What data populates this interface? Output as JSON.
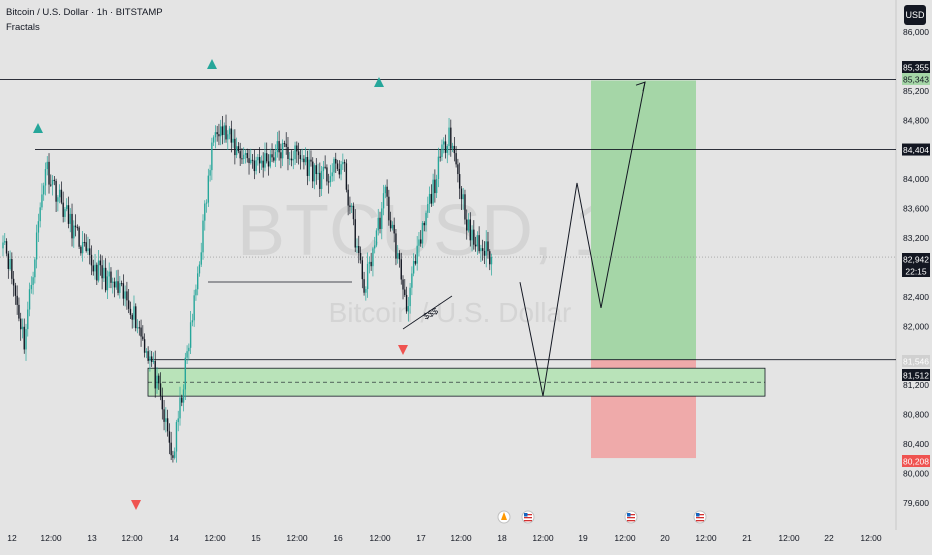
{
  "header": {
    "title": "Bitcoin / U.S. Dollar · 1h · BITSTAMP",
    "indicator": "Fractals",
    "currency_button": "USD"
  },
  "watermark": {
    "symbol": "BTCUSD, 1h",
    "name": "Bitcoin / U.S. Dollar"
  },
  "annotation": {
    "liquidity_label": "$$$"
  },
  "price_scale": {
    "ticks": [
      "86,000",
      "85,200",
      "84,800",
      "84,000",
      "83,600",
      "83,200",
      "82,400",
      "82,000",
      "81,200",
      "80,800",
      "80,400",
      "80,000",
      "79,600"
    ],
    "tags": {
      "resistance_top": "85,355",
      "target": "85,343",
      "resistance_mid": "84,404",
      "current_price": "82,942",
      "countdown": "22:15",
      "entry": "81,546",
      "support": "81,512",
      "stop": "80,208"
    }
  },
  "time_axis": {
    "labels": [
      "12",
      "12:00",
      "13",
      "12:00",
      "14",
      "12:00",
      "15",
      "12:00",
      "16",
      "12:00",
      "17",
      "12:00",
      "18",
      "12:00",
      "19",
      "12:00",
      "20",
      "12:00",
      "21",
      "12:00",
      "22",
      "12:00"
    ]
  },
  "colors": {
    "bull": "#26a69a",
    "bear": "#131722",
    "fractal_up": "#26a69a",
    "fractal_down": "#ef5350",
    "profit_zone": "#a5d6a7",
    "loss_zone": "#efaaaa",
    "demand_zone": "#b9e3b9"
  },
  "chart_data": {
    "type": "candlestick",
    "symbol": "BTCUSD",
    "interval": "1h",
    "exchange": "BITSTAMP",
    "ylim": [
      79400,
      86200
    ],
    "x": [
      "2025-03-12 00:00",
      "2025-03-12 12:00",
      "2025-03-13 00:00",
      "2025-03-13 12:00",
      "2025-03-14 00:00",
      "2025-03-14 12:00",
      "2025-03-15 00:00",
      "2025-03-15 12:00",
      "2025-03-16 00:00",
      "2025-03-16 12:00",
      "2025-03-17 00:00",
      "2025-03-17 12:00",
      "2025-03-18 00:00",
      "2025-03-18 12:00",
      "2025-03-19 00:00",
      "2025-03-19 12:00",
      "2025-03-20 00:00",
      "2025-03-20 12:00",
      "2025-03-21 00:00",
      "2025-03-21 12:00",
      "2025-03-22 00:00",
      "2025-03-22 12:00"
    ],
    "close_anchors": [
      83300,
      81800,
      84200,
      83500,
      82900,
      82600,
      82300,
      81500,
      80200,
      82300,
      84800,
      84400,
      84200,
      84400,
      84300,
      84000,
      84200,
      82500,
      83800,
      82300,
      83600,
      84700,
      83200,
      82942
    ],
    "horizontal_levels": [
      85355,
      84404,
      81546,
      81512
    ],
    "demand_zone": [
      81050,
      81430
    ],
    "long_position": {
      "entry": 81546,
      "target": 85343,
      "stop": 80208
    },
    "projection": [
      82600,
      81050,
      83950,
      82250,
      85320
    ],
    "current_price": 82942
  }
}
